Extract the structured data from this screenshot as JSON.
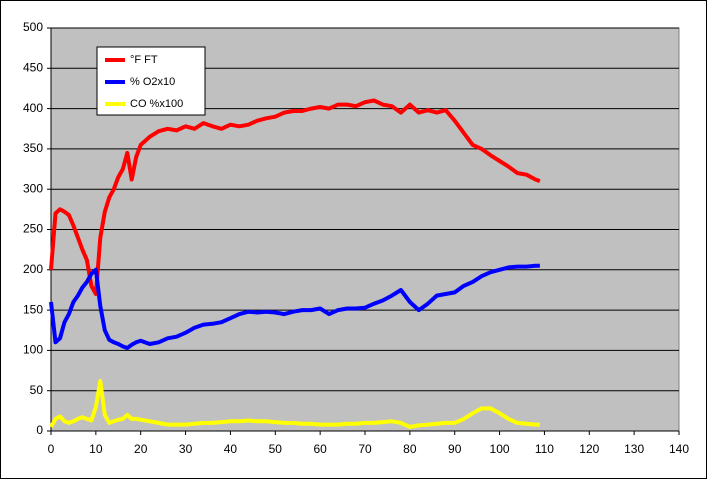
{
  "chart_data": {
    "type": "line",
    "x": [
      0,
      1,
      2,
      3,
      4,
      5,
      6,
      7,
      8,
      9,
      10,
      11,
      12,
      13,
      14,
      15,
      16,
      17,
      18,
      19,
      20,
      22,
      24,
      26,
      28,
      30,
      32,
      34,
      36,
      38,
      40,
      42,
      44,
      46,
      48,
      50,
      52,
      54,
      56,
      58,
      60,
      62,
      64,
      66,
      68,
      70,
      72,
      74,
      76,
      78,
      80,
      82,
      84,
      86,
      88,
      90,
      92,
      94,
      96,
      98,
      100,
      102,
      104,
      106,
      108,
      109
    ],
    "series": [
      {
        "name": "°F FT",
        "color": "#ff0000",
        "values": [
          200,
          270,
          275,
          272,
          268,
          255,
          240,
          225,
          212,
          180,
          170,
          240,
          272,
          290,
          300,
          315,
          325,
          345,
          312,
          340,
          355,
          365,
          372,
          375,
          373,
          378,
          375,
          382,
          378,
          375,
          380,
          378,
          380,
          385,
          388,
          390,
          395,
          397,
          397,
          400,
          402,
          400,
          405,
          405,
          403,
          408,
          410,
          405,
          403,
          395,
          405,
          395,
          398,
          395,
          398,
          385,
          370,
          355,
          350,
          342,
          335,
          328,
          320,
          318,
          312,
          310
        ]
      },
      {
        "name": "% O2x10",
        "color": "#0000ff",
        "values": [
          160,
          110,
          115,
          135,
          145,
          160,
          168,
          178,
          185,
          195,
          200,
          155,
          125,
          113,
          110,
          108,
          105,
          103,
          107,
          110,
          112,
          108,
          110,
          115,
          117,
          122,
          128,
          132,
          133,
          135,
          140,
          145,
          148,
          147,
          148,
          147,
          145,
          148,
          150,
          150,
          152,
          145,
          150,
          152,
          152,
          153,
          158,
          162,
          168,
          175,
          160,
          150,
          158,
          168,
          170,
          172,
          180,
          185,
          192,
          197,
          200,
          203,
          204,
          204,
          205,
          205
        ]
      },
      {
        "name": "CO %x100",
        "color": "#ffff00",
        "values": [
          5,
          15,
          18,
          12,
          10,
          12,
          15,
          17,
          15,
          13,
          30,
          62,
          20,
          10,
          12,
          14,
          15,
          20,
          15,
          15,
          14,
          12,
          10,
          8,
          8,
          8,
          9,
          10,
          10,
          11,
          12,
          12,
          13,
          12,
          12,
          11,
          10,
          10,
          9,
          9,
          8,
          8,
          8,
          9,
          9,
          10,
          10,
          11,
          12,
          10,
          5,
          7,
          8,
          9,
          10,
          10,
          15,
          22,
          28,
          28,
          22,
          15,
          10,
          9,
          8,
          8
        ]
      }
    ],
    "xlim": [
      0,
      140
    ],
    "xticks": [
      0,
      10,
      20,
      30,
      40,
      50,
      60,
      70,
      80,
      90,
      100,
      110,
      120,
      130,
      140
    ],
    "ylim": [
      0,
      500
    ],
    "yticks": [
      0,
      50,
      100,
      150,
      200,
      250,
      300,
      350,
      400,
      450,
      500
    ],
    "grid": true,
    "legend": "top-left"
  }
}
